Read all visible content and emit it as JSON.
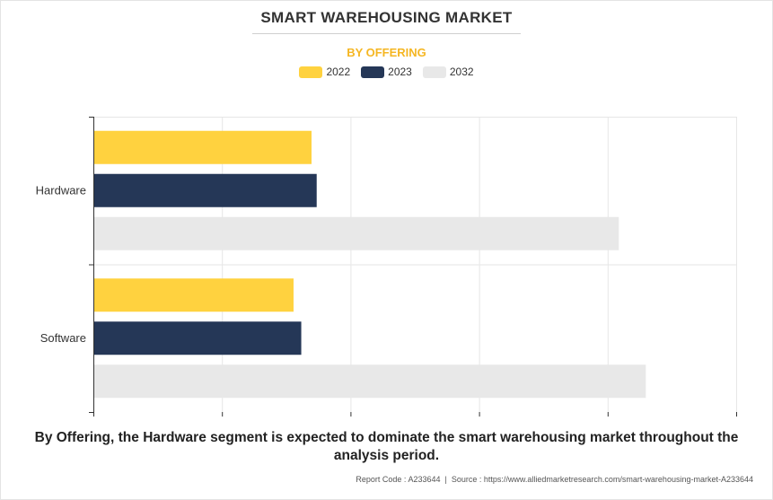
{
  "title": "SMART WAREHOUSING MARKET",
  "subtitle": "BY OFFERING",
  "caption": "By Offering, the Hardware segment is expected to dominate the smart warehousing market throughout the analysis period.",
  "footer": {
    "report_code": "Report Code : A233644",
    "separator": "|",
    "source": "Source : https://www.alliedmarketresearch.com/smart-warehousing-market-A233644"
  },
  "colors": {
    "subtitle": "#f5b622",
    "series_2022": "#ffd23f",
    "series_2023": "#253757",
    "series_2032": "#e8e8e8",
    "grid": "#e6e6e6",
    "axis": "#333333"
  },
  "chart_data": {
    "type": "bar",
    "orientation": "horizontal",
    "categories": [
      "Hardware",
      "Software"
    ],
    "series": [
      {
        "name": "2022",
        "values": [
          1.69,
          1.55
        ]
      },
      {
        "name": "2023",
        "values": [
          1.73,
          1.61
        ]
      },
      {
        "name": "2032",
        "values": [
          4.08,
          4.29
        ]
      }
    ],
    "xlim": [
      0,
      5
    ],
    "x_ticks_labeled": false,
    "grid": true,
    "legend": "top-center"
  }
}
